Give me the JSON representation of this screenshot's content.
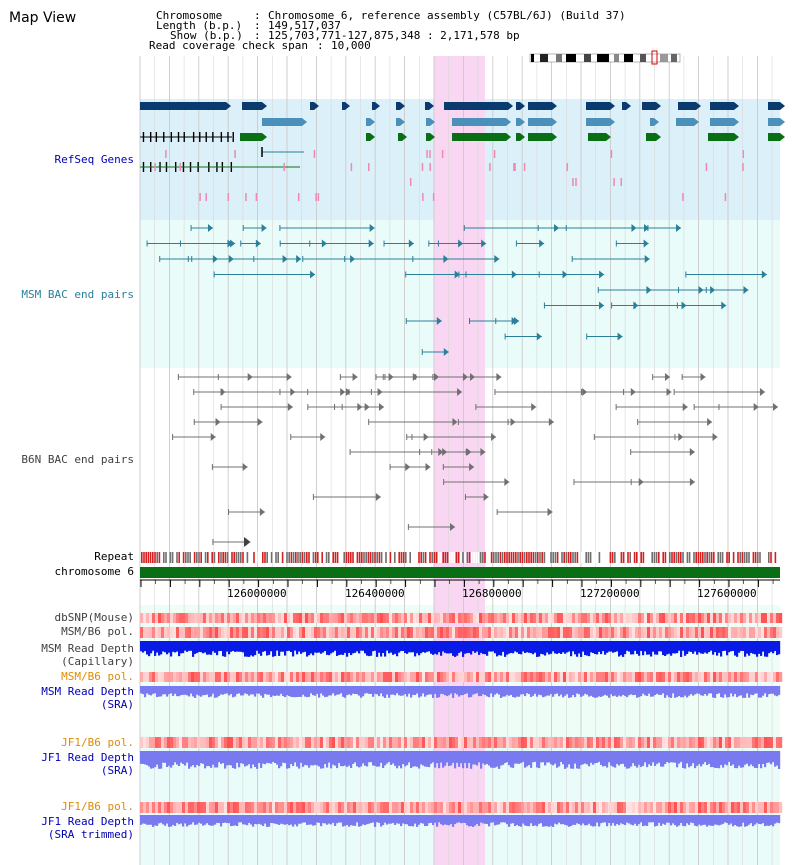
{
  "view": {
    "title": "Map View",
    "chromosome_key": "Chromosome",
    "chromosome_value": "Chromosome 6, reference assembly (C57BL/6J) (Build 37)",
    "length_key": "Length (b.p.)",
    "length_value": "149,517,037",
    "show_key": "Show (b.p.)",
    "show_value": "125,703,771-127,875,348 : 2,171,578 bp",
    "coverage_key": "Read coverage check span",
    "coverage_value": "10,000"
  },
  "tracks": {
    "refseq": "RefSeq Genes",
    "msm_bac": "MSM BAC end pairs",
    "b6n_bac": "B6N BAC end pairs",
    "repeat": "Repeat",
    "chromosome": "chromosome 6",
    "dbsnp": "dbSNP(Mouse)",
    "msm_b6_pol_1": "MSM/B6 pol.",
    "msm_read_depth_cap_1": "MSM Read Depth",
    "msm_read_depth_cap_2": "(Capillary)",
    "msm_b6_pol_2": "MSM/B6 pol.",
    "msm_read_depth_sra_1": "MSM Read Depth",
    "msm_read_depth_sra_2": "(SRA)",
    "jf1_b6_pol_1": "JF1/B6 pol.",
    "jf1_read_depth_sra_1": "JF1 Read Depth",
    "jf1_read_depth_sra_2": "(SRA)",
    "jf1_b6_pol_2": "JF1/B6 pol.",
    "jf1_read_depth_trim_1": "JF1 Read Depth",
    "jf1_read_depth_trim_2": "(SRA trimmed)"
  },
  "axis": {
    "ticks": [
      "126000000",
      "126400000",
      "126800000",
      "127200000",
      "127600000"
    ]
  },
  "colors": {
    "refseq_bg": "#dcf0fa",
    "bac_bg": "#eafcfa",
    "pink_highlight": "#f9d6f2",
    "gene_navy": "#0b3a6e",
    "gene_teal": "#4a90b8",
    "gene_green": "#0a6e14",
    "msm_bac": "#2a7f9a",
    "b6n_bac": "#707070",
    "chromosome": "#0a6e14",
    "label_blue": "#0000b4",
    "label_gray": "#404040",
    "label_orange": "#e08c00",
    "depth_blue": "#0a1ae6",
    "depth_light": "#7a7af0"
  }
}
